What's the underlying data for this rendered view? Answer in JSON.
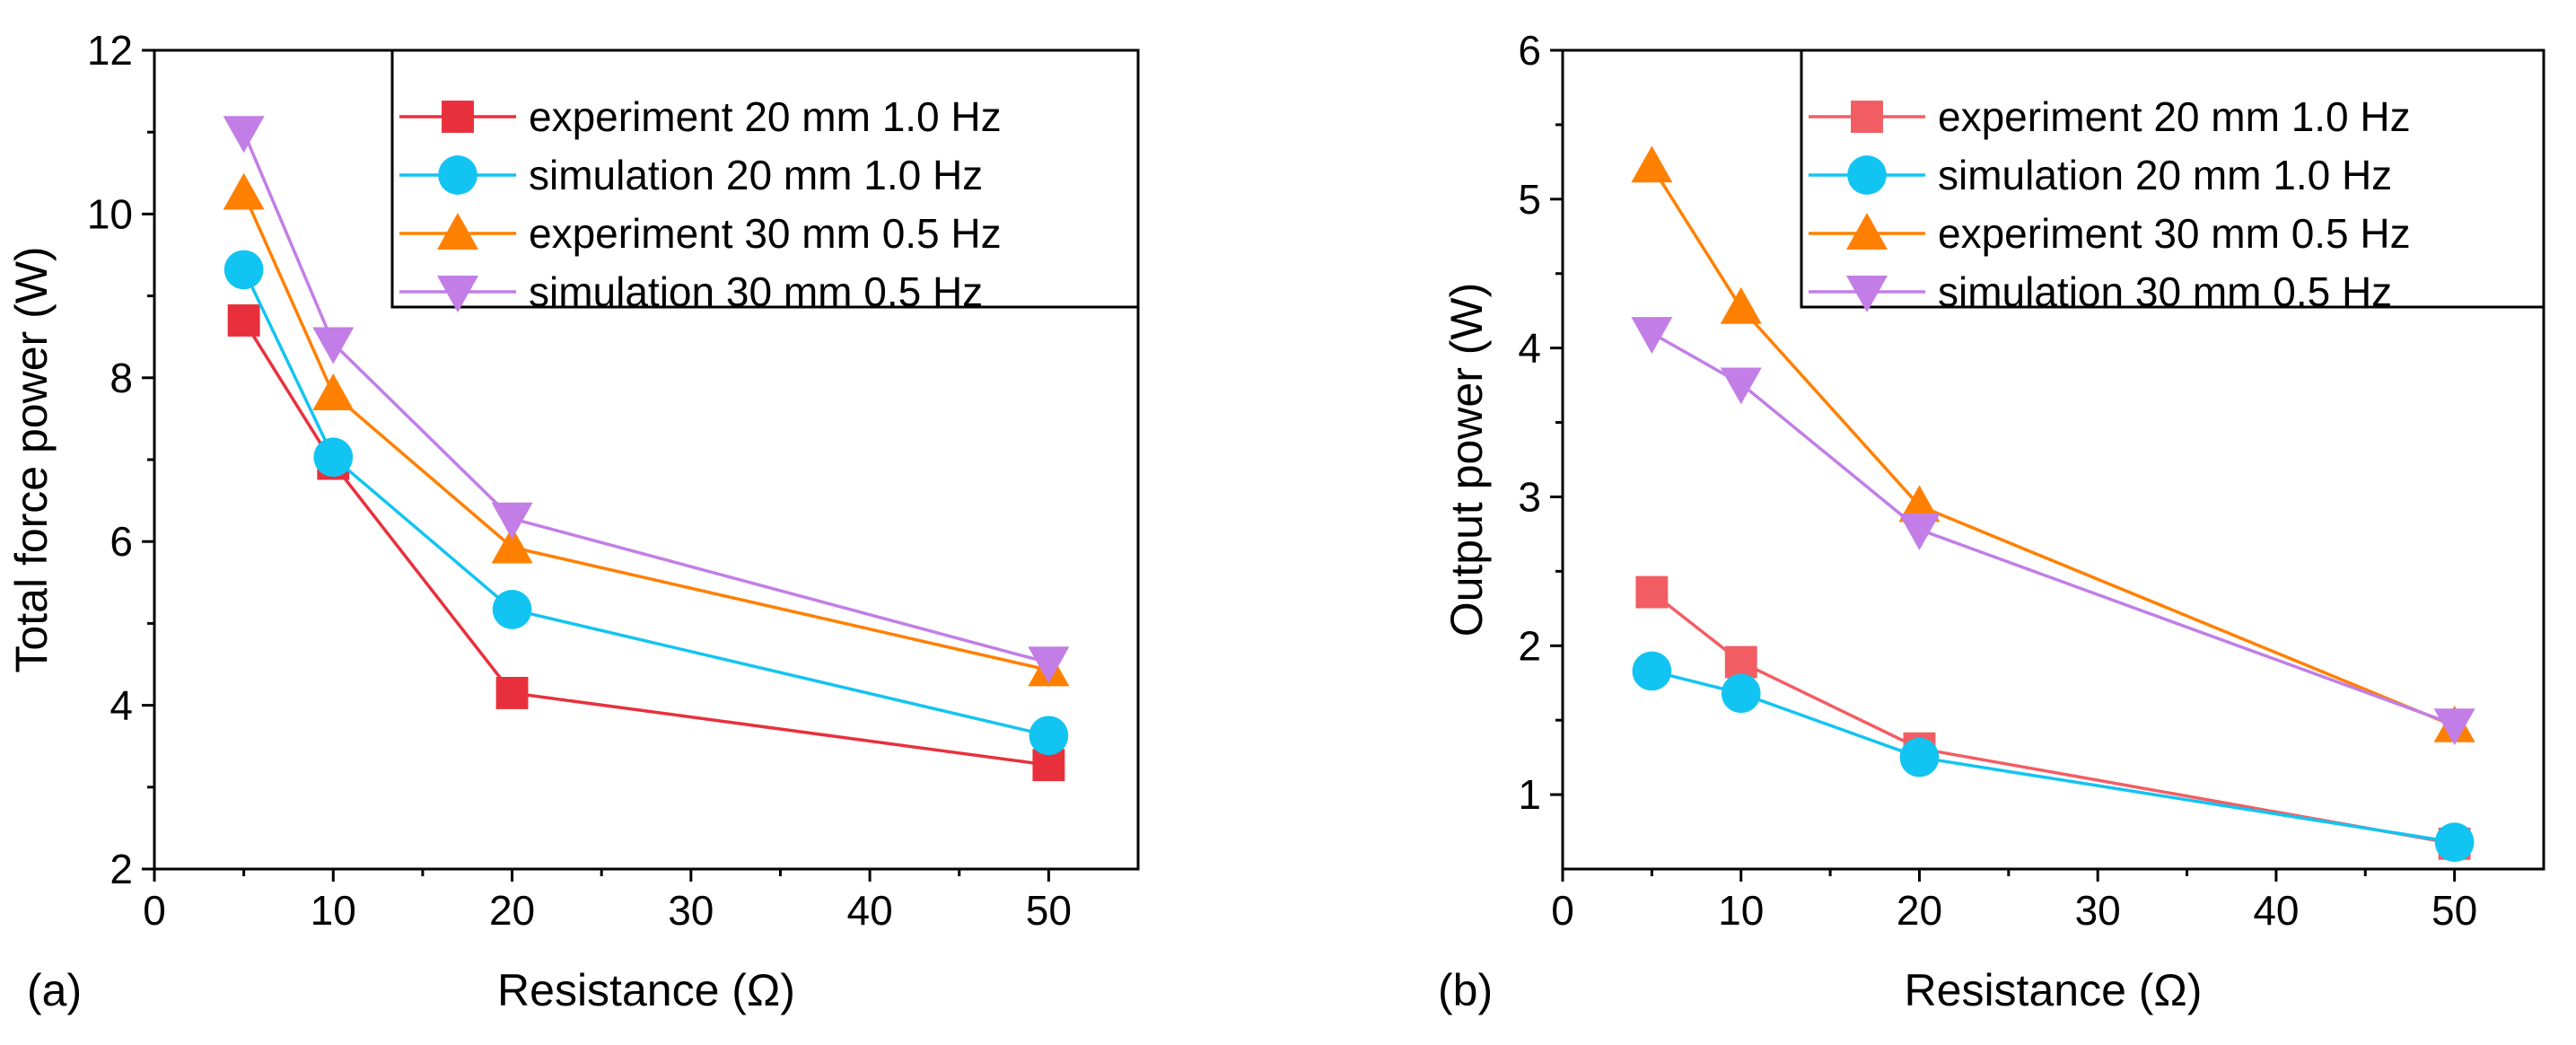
{
  "chart_data": [
    {
      "type": "line",
      "panel_label": "(a)",
      "xlabel": "Resistance (Ω)",
      "ylabel": "Total force power (W)",
      "xlim": [
        0,
        55
      ],
      "ylim": [
        2,
        12
      ],
      "xticks": [
        0,
        10,
        20,
        30,
        40,
        50
      ],
      "yticks": [
        2,
        4,
        6,
        8,
        10,
        12
      ],
      "x": [
        5,
        10,
        20,
        50
      ],
      "legend_position": "top-right",
      "series": [
        {
          "name": "experiment 20 mm 1.0 Hz",
          "marker": "square",
          "color": "#e8303c",
          "values": [
            8.7,
            6.95,
            4.15,
            3.27
          ]
        },
        {
          "name": "simulation 20 mm 1.0 Hz",
          "marker": "circle",
          "color": "#12c4f2",
          "values": [
            9.32,
            7.03,
            5.17,
            3.63
          ]
        },
        {
          "name": "experiment 30 mm 0.5 Hz",
          "marker": "triangle-up",
          "color": "#ff8000",
          "values": [
            10.25,
            7.8,
            5.93,
            4.43
          ]
        },
        {
          "name": "simulation 30 mm 0.5 Hz",
          "marker": "triangle-down",
          "color": "#c27ee6",
          "values": [
            11.0,
            8.42,
            6.28,
            4.52
          ]
        }
      ]
    },
    {
      "type": "line",
      "panel_label": "(b)",
      "xlabel": "Resistance (Ω)",
      "ylabel": "Output power (W)",
      "xlim": [
        0,
        55
      ],
      "ylim": [
        0.5,
        6
      ],
      "xticks": [
        0,
        10,
        20,
        30,
        40,
        50
      ],
      "yticks": [
        1,
        2,
        3,
        4,
        5,
        6
      ],
      "x": [
        5,
        10,
        20,
        50
      ],
      "legend_position": "top-right",
      "series": [
        {
          "name": "experiment 20 mm 1.0 Hz",
          "marker": "square",
          "color": "#f25d64",
          "values": [
            2.36,
            1.89,
            1.31,
            0.67
          ]
        },
        {
          "name": "simulation 20 mm 1.0 Hz",
          "marker": "circle",
          "color": "#12c4f2",
          "values": [
            1.83,
            1.68,
            1.25,
            0.68
          ]
        },
        {
          "name": "experiment 30 mm 0.5 Hz",
          "marker": "triangle-up",
          "color": "#ff8000",
          "values": [
            5.22,
            4.27,
            2.94,
            1.46
          ]
        },
        {
          "name": "simulation 30 mm 0.5 Hz",
          "marker": "triangle-down",
          "color": "#c27ee6",
          "values": [
            4.1,
            3.76,
            2.78,
            1.47
          ]
        }
      ]
    }
  ]
}
